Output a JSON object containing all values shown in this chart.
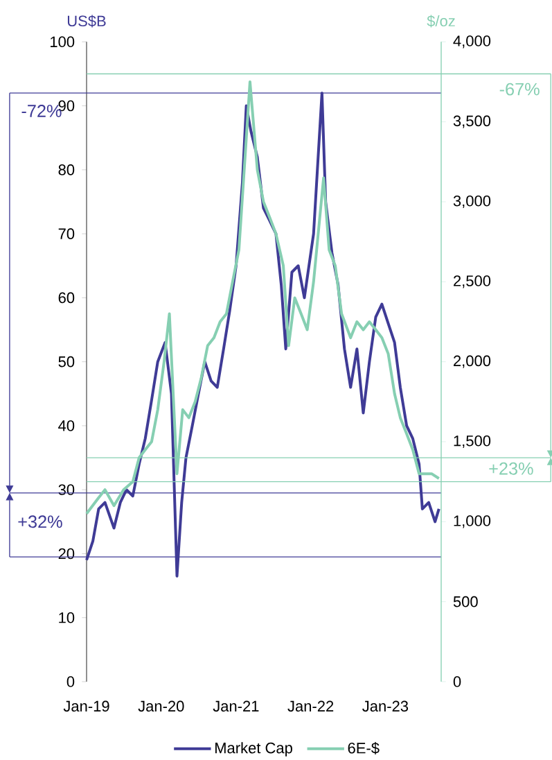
{
  "chart_data": {
    "type": "line",
    "ylabel": "US$B",
    "y2label": "$/oz",
    "xlim": [
      "2019-01-01",
      "2023-10-01"
    ],
    "xticks": [
      {
        "value": "2019-01-01",
        "label": "Jan-19"
      },
      {
        "value": "2020-01-01",
        "label": "Jan-20"
      },
      {
        "value": "2021-01-01",
        "label": "Jan-21"
      },
      {
        "value": "2022-01-01",
        "label": "Jan-22"
      },
      {
        "value": "2023-01-01",
        "label": "Jan-23"
      }
    ],
    "ylim": [
      0,
      100
    ],
    "yticks": [
      0,
      10,
      20,
      30,
      40,
      50,
      60,
      70,
      80,
      90,
      100
    ],
    "y2lim": [
      0,
      4000
    ],
    "y2ticks": [
      {
        "value": 0,
        "label": "0"
      },
      {
        "value": 500,
        "label": "500"
      },
      {
        "value": 1000,
        "label": "1,000"
      },
      {
        "value": 1500,
        "label": "1,500"
      },
      {
        "value": 2000,
        "label": "2,000"
      },
      {
        "value": 2500,
        "label": "2,500"
      },
      {
        "value": 3000,
        "label": "3,000"
      },
      {
        "value": 3500,
        "label": "3,500"
      },
      {
        "value": 4000,
        "label": "4,000"
      }
    ],
    "legend": "bottom",
    "line_style": "solid",
    "series": [
      {
        "name": "Market Cap",
        "color": "#3f3b96",
        "axis": "y",
        "x": [
          "2019-01-01",
          "2019-02-01",
          "2019-03-01",
          "2019-04-01",
          "2019-05-15",
          "2019-06-15",
          "2019-07-15",
          "2019-08-15",
          "2019-09-15",
          "2019-10-15",
          "2019-11-15",
          "2019-12-15",
          "2020-01-20",
          "2020-02-20",
          "2020-03-18",
          "2020-04-10",
          "2020-05-01",
          "2020-06-01",
          "2020-07-01",
          "2020-08-01",
          "2020-09-01",
          "2020-10-01",
          "2020-11-01",
          "2020-12-01",
          "2021-01-01",
          "2021-02-01",
          "2021-02-20",
          "2021-03-15",
          "2021-04-15",
          "2021-05-15",
          "2021-06-15",
          "2021-07-15",
          "2021-08-10",
          "2021-09-01",
          "2021-10-01",
          "2021-11-01",
          "2021-12-01",
          "2022-01-15",
          "2022-02-25",
          "2022-03-15",
          "2022-04-15",
          "2022-05-15",
          "2022-06-15",
          "2022-07-15",
          "2022-08-15",
          "2022-09-15",
          "2022-10-15",
          "2022-11-15",
          "2022-12-15",
          "2023-01-15",
          "2023-02-15",
          "2023-03-15",
          "2023-04-15",
          "2023-05-15",
          "2023-06-15",
          "2023-07-01",
          "2023-08-01",
          "2023-09-01",
          "2023-09-20"
        ],
        "values": [
          19,
          22,
          27,
          28,
          24,
          28,
          30,
          29,
          34,
          38,
          44,
          50,
          53,
          45,
          16.5,
          28,
          35,
          40,
          45,
          50,
          47,
          46,
          52,
          58,
          65,
          78,
          90,
          86,
          82,
          74,
          72,
          70,
          62,
          52,
          64,
          65,
          60,
          70,
          92,
          75,
          67,
          62,
          52,
          46,
          52,
          42,
          50,
          57,
          59,
          56,
          53,
          46,
          40,
          38,
          34,
          27,
          28,
          25,
          27
        ]
      },
      {
        "name": "6E-$",
        "color": "#86cfb2",
        "axis": "y2",
        "x": [
          "2019-01-01",
          "2019-03-01",
          "2019-04-01",
          "2019-05-15",
          "2019-07-01",
          "2019-08-15",
          "2019-09-15",
          "2019-10-15",
          "2019-11-15",
          "2019-12-15",
          "2020-01-15",
          "2020-02-10",
          "2020-03-18",
          "2020-04-15",
          "2020-05-15",
          "2020-06-15",
          "2020-07-15",
          "2020-08-15",
          "2020-09-15",
          "2020-10-15",
          "2020-11-15",
          "2020-12-15",
          "2021-01-15",
          "2021-02-15",
          "2021-03-10",
          "2021-04-15",
          "2021-05-15",
          "2021-06-15",
          "2021-07-15",
          "2021-08-20",
          "2021-09-15",
          "2021-10-15",
          "2021-11-15",
          "2021-12-15",
          "2022-01-15",
          "2022-03-05",
          "2022-04-01",
          "2022-05-01",
          "2022-06-01",
          "2022-07-15",
          "2022-08-15",
          "2022-09-15",
          "2022-10-15",
          "2022-11-15",
          "2022-12-15",
          "2023-01-15",
          "2023-02-15",
          "2023-03-15",
          "2023-04-15",
          "2023-05-15",
          "2023-06-15",
          "2023-07-15",
          "2023-08-15",
          "2023-09-20"
        ],
        "values": [
          1050,
          1150,
          1200,
          1100,
          1200,
          1250,
          1400,
          1450,
          1500,
          1700,
          2000,
          2300,
          1300,
          1700,
          1650,
          1750,
          1900,
          2100,
          2150,
          2250,
          2300,
          2500,
          2700,
          3300,
          3750,
          3200,
          3000,
          2900,
          2800,
          2600,
          2100,
          2400,
          2300,
          2200,
          2500,
          3150,
          2700,
          2600,
          2300,
          2150,
          2250,
          2200,
          2250,
          2200,
          2150,
          2050,
          1800,
          1650,
          1550,
          1450,
          1300,
          1300,
          1300,
          1270
        ]
      }
    ],
    "ref_lines": [
      {
        "axis": "y",
        "value": 92,
        "color": "#3f3b96"
      },
      {
        "axis": "y",
        "value": 29.5,
        "color": "#3f3b96"
      },
      {
        "axis": "y",
        "value": 19.5,
        "color": "#3f3b96"
      },
      {
        "axis": "y2",
        "value": 3800,
        "color": "#86cfb2"
      },
      {
        "axis": "y2",
        "value": 1400,
        "color": "#86cfb2"
      },
      {
        "axis": "y2",
        "value": 1250,
        "color": "#86cfb2"
      }
    ],
    "annotations": [
      "-72%",
      "+32%",
      "-67%",
      "+23%"
    ]
  }
}
